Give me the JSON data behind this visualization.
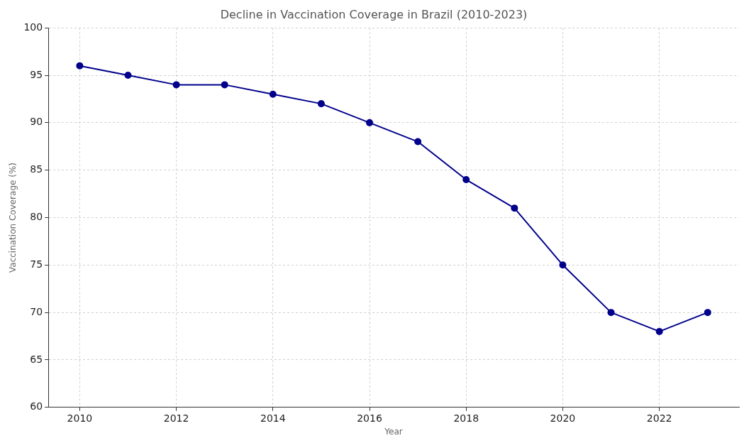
{
  "chart_data": {
    "type": "line",
    "title": "Decline in Vaccination Coverage in Brazil (2010-2023)",
    "xlabel": "Year",
    "ylabel": "Vaccination Coverage (%)",
    "x": [
      2010,
      2011,
      2012,
      2013,
      2014,
      2015,
      2016,
      2017,
      2018,
      2019,
      2020,
      2021,
      2022,
      2023
    ],
    "series": [
      {
        "color": "#00008b",
        "values": [
          96,
          95,
          94,
          94,
          93,
          92,
          90,
          88,
          84,
          81,
          75,
          70,
          68,
          70
        ]
      }
    ],
    "xlim": [
      2009.35,
      2023.65
    ],
    "xticks": [
      2010,
      2012,
      2014,
      2016,
      2018,
      2020,
      2022
    ],
    "ylim": [
      60,
      100
    ],
    "yticks": [
      60,
      65,
      70,
      75,
      80,
      85,
      90,
      95,
      100
    ],
    "grid": true,
    "marker": "circle",
    "line_style": "solid",
    "legend": false
  }
}
